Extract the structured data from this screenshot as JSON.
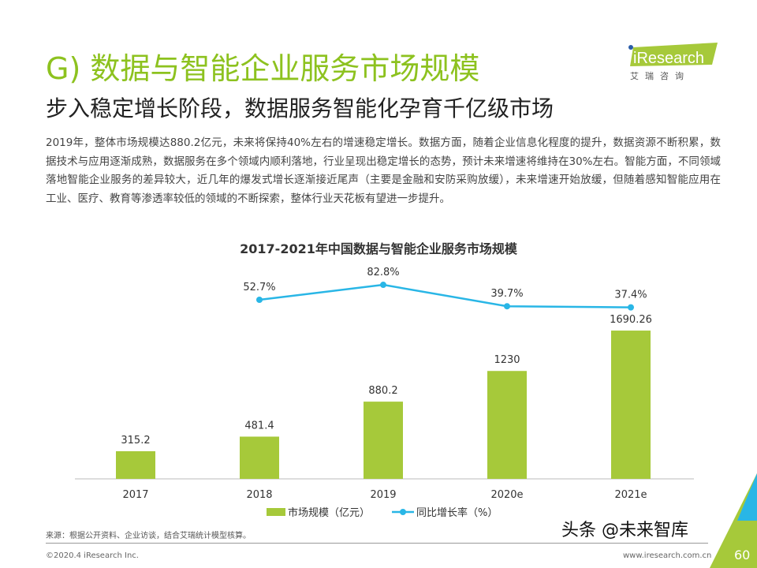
{
  "header": {
    "title": "G) 数据与智能企业服务市场规模",
    "subtitle": "步入稳定增长阶段，数据服务智能化孕育千亿级市场",
    "logo_text": "iResearch",
    "logo_cn": "艾 瑞 咨 询"
  },
  "body_text": "2019年，整体市场规模达880.2亿元，未来将保持40%左右的增速稳定增长。数据方面，随着企业信息化程度的提升，数据资源不断积累，数据技术与应用逐渐成熟，数据服务在多个领域内顺利落地，行业呈现出稳定增长的态势，预计未来增速将维持在30%左右。智能方面，不同领域落地智能企业服务的差异较大，近几年的爆发式增长逐渐接近尾声（主要是金融和安防采购放缓），未来增速开始放缓，但随着感知智能应用在工业、医疗、教育等渗透率较低的领域的不断探索，整体行业天花板有望进一步提升。",
  "chart_data": {
    "type": "bar+line",
    "title": "2017-2021年中国数据与智能企业服务市场规模",
    "categories": [
      "2017",
      "2018",
      "2019",
      "2020e",
      "2021e"
    ],
    "series": [
      {
        "name": "市场规模（亿元）",
        "type": "bar",
        "color": "#a6c93a",
        "values": [
          315.2,
          481.4,
          880.2,
          1230,
          1690.26
        ],
        "labels": [
          "315.2",
          "481.4",
          "880.2",
          "1230",
          "1690.26"
        ]
      },
      {
        "name": "同比增长率（%）",
        "type": "line",
        "color": "#29b6e6",
        "values": [
          null,
          52.7,
          82.8,
          39.7,
          37.4
        ],
        "labels": [
          "",
          "52.7%",
          "82.8%",
          "39.7%",
          "37.4%"
        ]
      }
    ],
    "legend": "bottom",
    "grid": false
  },
  "footer": {
    "source": "来源：根据公开资料、企业访谈，结合艾瑞统计模型核算。",
    "copyright": "©2020.4 iResearch Inc.",
    "site": "www.iresearch.com.cn",
    "page": "60",
    "watermark": "头条 @未来智库"
  }
}
